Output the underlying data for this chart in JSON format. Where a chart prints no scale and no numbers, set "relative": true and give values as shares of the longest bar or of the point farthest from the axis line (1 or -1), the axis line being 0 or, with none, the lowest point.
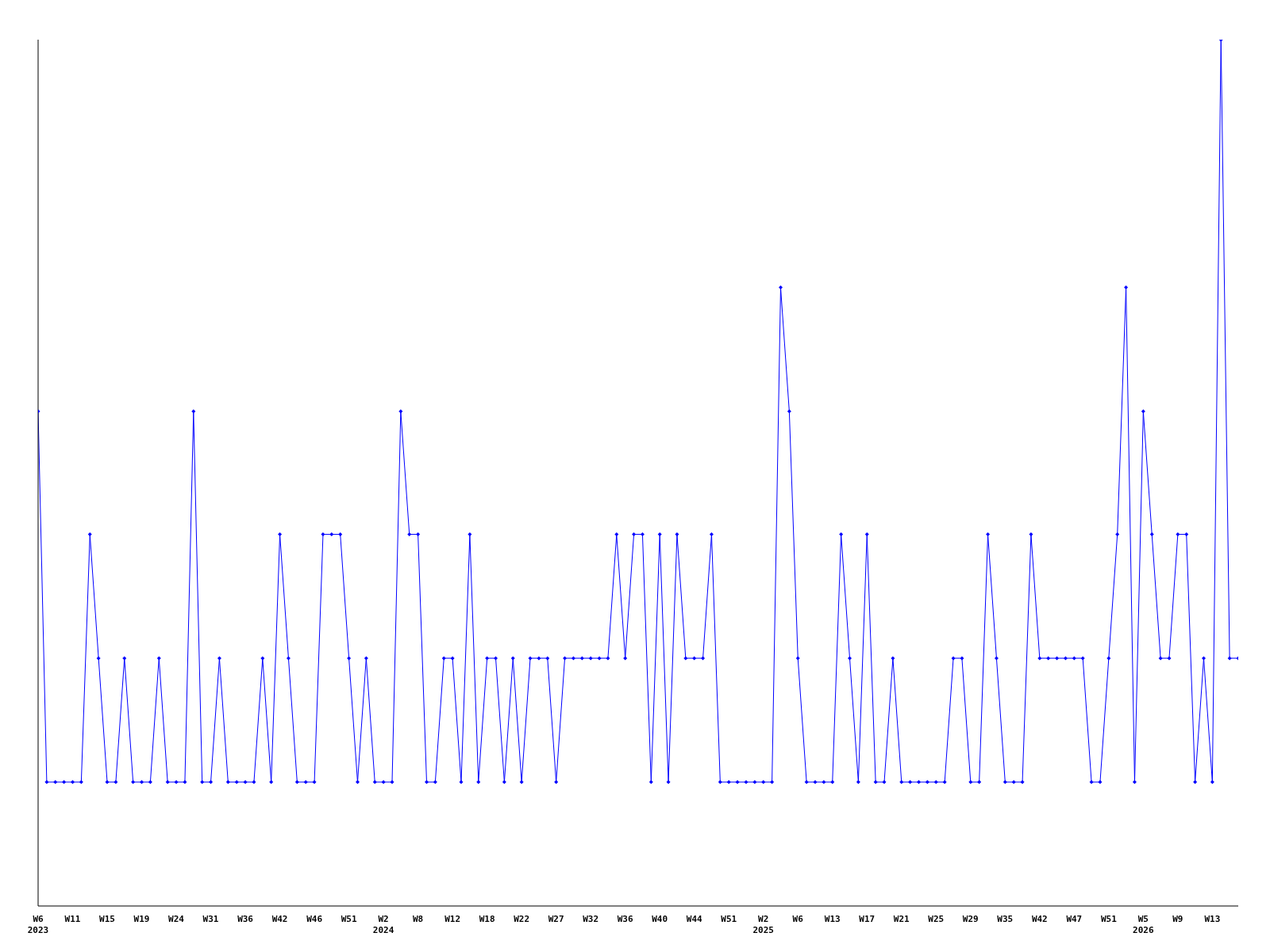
{
  "chart_data": {
    "type": "line",
    "relative": true,
    "marker": "diamond",
    "line_style": "solid",
    "grid": false,
    "legend": false,
    "categories": [
      "W6\n2023",
      null,
      null,
      null,
      "W11",
      null,
      null,
      null,
      "W15",
      null,
      null,
      null,
      "W19",
      null,
      null,
      null,
      "W24",
      null,
      null,
      null,
      "W31",
      null,
      null,
      null,
      "W36",
      null,
      null,
      null,
      "W42",
      null,
      null,
      null,
      "W46",
      null,
      null,
      null,
      "W51",
      null,
      null,
      null,
      "W2\n2024",
      null,
      null,
      null,
      "W8",
      null,
      null,
      null,
      "W12",
      null,
      null,
      null,
      "W18",
      null,
      null,
      null,
      "W22",
      null,
      null,
      null,
      "W27",
      null,
      null,
      null,
      "W32",
      null,
      null,
      null,
      "W36",
      null,
      null,
      null,
      "W40",
      null,
      null,
      null,
      "W44",
      null,
      null,
      null,
      "W51",
      null,
      null,
      null,
      "W2\n2025",
      null,
      null,
      null,
      "W6",
      null,
      null,
      null,
      "W13",
      null,
      null,
      null,
      "W17",
      null,
      null,
      null,
      "W21",
      null,
      null,
      null,
      "W25",
      null,
      null,
      null,
      "W29",
      null,
      null,
      null,
      "W35",
      null,
      null,
      null,
      "W42",
      null,
      null,
      null,
      "W47",
      null,
      null,
      null,
      "W51",
      null,
      null,
      null,
      "W5\n2026",
      null,
      null,
      null,
      "W9",
      null,
      null,
      null,
      "W13",
      null,
      null,
      null
    ],
    "series": [
      {
        "color": "#0000ff",
        "values": [
          0.571,
          0.143,
          0.143,
          0.143,
          0.143,
          0.143,
          0.429,
          0.286,
          0.143,
          0.143,
          0.286,
          0.143,
          0.143,
          0.143,
          0.286,
          0.143,
          0.143,
          0.143,
          0.571,
          0.143,
          0.143,
          0.286,
          0.143,
          0.143,
          0.143,
          0.143,
          0.286,
          0.143,
          0.429,
          0.286,
          0.143,
          0.143,
          0.143,
          0.429,
          0.429,
          0.429,
          0.286,
          0.143,
          0.286,
          0.143,
          0.143,
          0.143,
          0.571,
          0.429,
          0.429,
          0.143,
          0.143,
          0.286,
          0.286,
          0.143,
          0.429,
          0.143,
          0.286,
          0.286,
          0.143,
          0.286,
          0.143,
          0.286,
          0.286,
          0.286,
          0.143,
          0.286,
          0.286,
          0.286,
          0.286,
          0.286,
          0.286,
          0.429,
          0.286,
          0.429,
          0.429,
          0.143,
          0.429,
          0.143,
          0.429,
          0.286,
          0.286,
          0.286,
          0.429,
          0.143,
          0.143,
          0.143,
          0.143,
          0.143,
          0.143,
          0.143,
          0.714,
          0.571,
          0.286,
          0.143,
          0.143,
          0.143,
          0.143,
          0.429,
          0.286,
          0.143,
          0.429,
          0.143,
          0.143,
          0.286,
          0.143,
          0.143,
          0.143,
          0.143,
          0.143,
          0.143,
          0.286,
          0.286,
          0.143,
          0.143,
          0.429,
          0.286,
          0.143,
          0.143,
          0.143,
          0.429,
          0.286,
          0.286,
          0.286,
          0.286,
          0.286,
          0.286,
          0.143,
          0.143,
          0.286,
          0.429,
          0.714,
          0.143,
          0.571,
          0.429,
          0.286,
          0.286,
          0.429,
          0.429,
          0.143,
          0.286,
          0.143,
          1,
          0.286,
          0.286
        ]
      }
    ]
  }
}
